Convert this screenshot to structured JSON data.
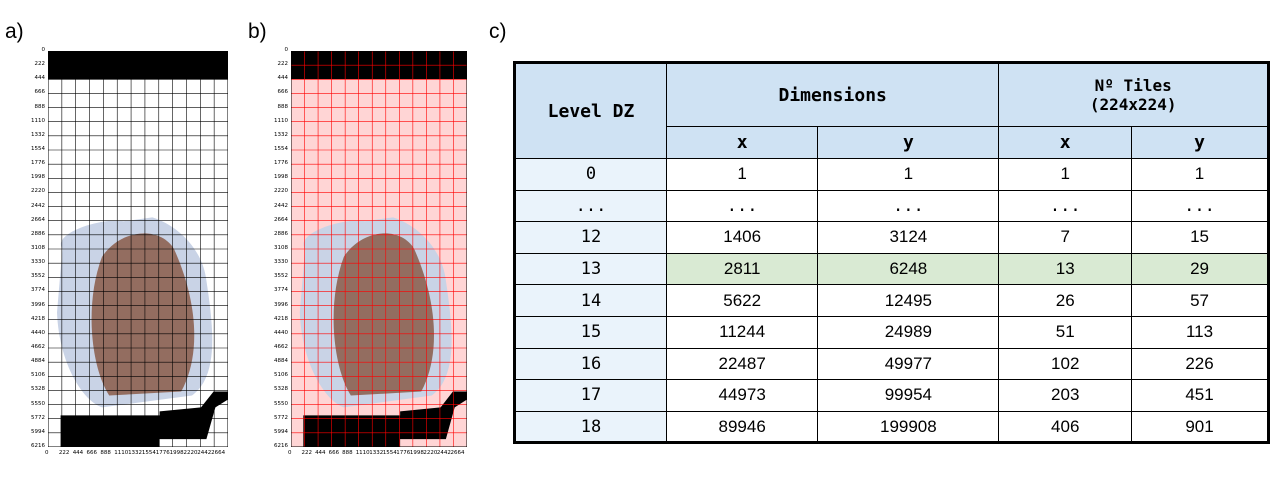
{
  "panel_labels": {
    "a": "a)",
    "b": "b)",
    "c": "c)"
  },
  "grid_plot": {
    "y_ticks": [
      "0",
      "222",
      "444",
      "666",
      "888",
      "1110",
      "1332",
      "1554",
      "1776",
      "1998",
      "2220",
      "2442",
      "2664",
      "2886",
      "3108",
      "3330",
      "3552",
      "3774",
      "3996",
      "4218",
      "4440",
      "4662",
      "4884",
      "5106",
      "5328",
      "5550",
      "5772",
      "5994",
      "6216"
    ],
    "x_ticks": [
      "0",
      "222",
      "444",
      "666",
      "888",
      "1110",
      "1332",
      "1554",
      "1776",
      "1998",
      "2220",
      "2442",
      "2664"
    ],
    "colors": {
      "grid_a": "#000000",
      "grid_b": "#ff0000",
      "tissue": "#8a5a48",
      "mask": "#000000",
      "overlay_b": "#ffb3b3"
    }
  },
  "table": {
    "headers": {
      "level": "Level DZ",
      "dimensions": "Dimensions",
      "tiles_line1": "Nº Tiles",
      "tiles_line2": "(224x224)",
      "x1": "x",
      "y1": "y",
      "x2": "x",
      "y2": "y"
    },
    "rows": [
      {
        "level": "0",
        "dx": "1",
        "dy": "1",
        "tx": "1",
        "ty": "1",
        "highlight": false
      },
      {
        "level": "...",
        "dx": "...",
        "dy": "...",
        "tx": "...",
        "ty": "...",
        "highlight": false
      },
      {
        "level": "12",
        "dx": "1406",
        "dy": "3124",
        "tx": "7",
        "ty": "15",
        "highlight": false
      },
      {
        "level": "13",
        "dx": "2811",
        "dy": "6248",
        "tx": "13",
        "ty": "29",
        "highlight": true
      },
      {
        "level": "14",
        "dx": "5622",
        "dy": "12495",
        "tx": "26",
        "ty": "57",
        "highlight": false
      },
      {
        "level": "15",
        "dx": "11244",
        "dy": "24989",
        "tx": "51",
        "ty": "113",
        "highlight": false
      },
      {
        "level": "16",
        "dx": "22487",
        "dy": "49977",
        "tx": "102",
        "ty": "226",
        "highlight": false
      },
      {
        "level": "17",
        "dx": "44973",
        "dy": "99954",
        "tx": "203",
        "ty": "451",
        "highlight": false
      },
      {
        "level": "18",
        "dx": "89946",
        "dy": "199908",
        "tx": "406",
        "ty": "901",
        "highlight": false
      }
    ]
  }
}
